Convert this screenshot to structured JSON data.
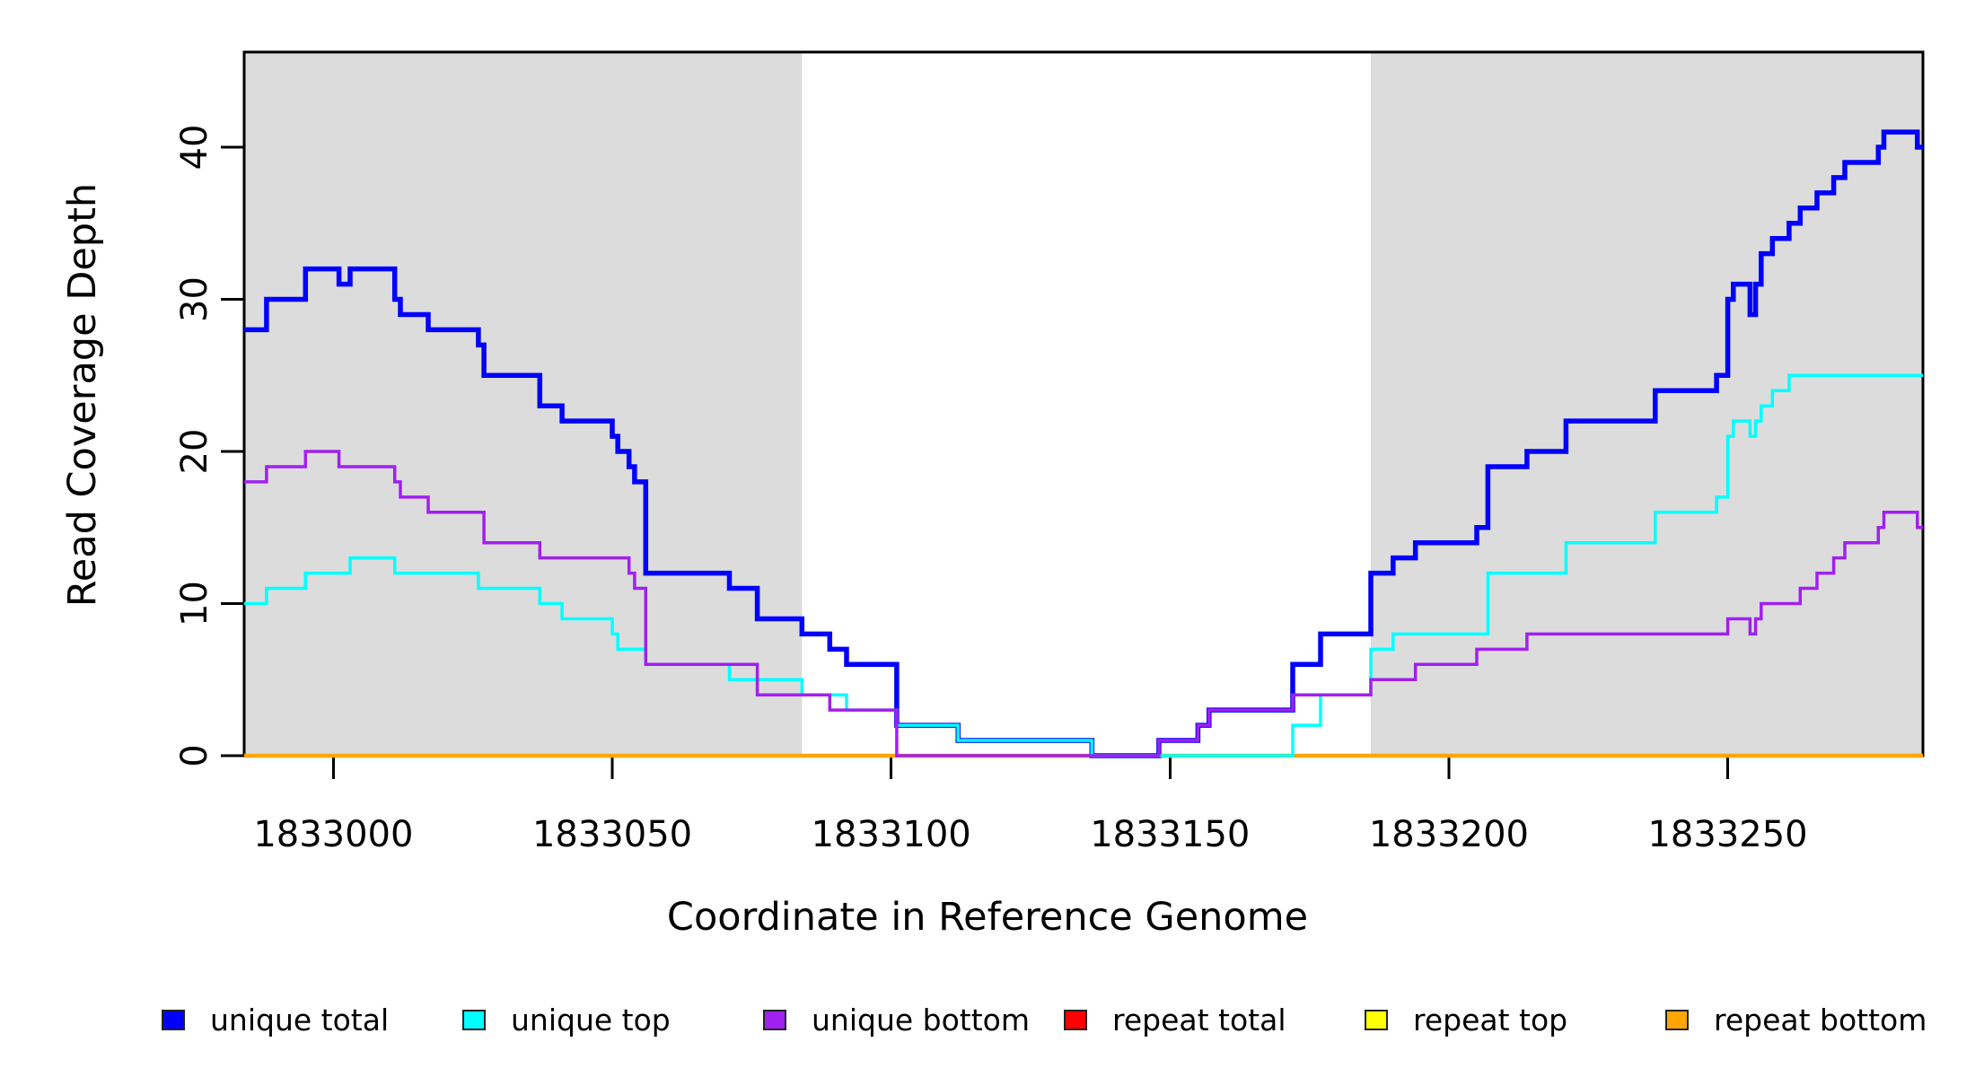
{
  "chart_data": {
    "type": "line",
    "step": true,
    "title": "",
    "xlabel": "Coordinate in Reference Genome",
    "ylabel": "Read Coverage Depth",
    "xlim": [
      1832984,
      1833285
    ],
    "ylim": [
      0,
      46
    ],
    "grid": false,
    "legend_position": "bottom",
    "x_ticks": [
      1833000,
      1833050,
      1833100,
      1833150,
      1833200,
      1833250
    ],
    "y_ticks": [
      0,
      10,
      20,
      30,
      40
    ],
    "shade_color": "#DCDCDC",
    "box_color": "#000000",
    "shaded_regions": [
      {
        "name": "left-flank-band",
        "from": 1832984,
        "to": 1833084
      },
      {
        "name": "right-flank-band",
        "from": 1833186,
        "to": 1833285
      }
    ],
    "series": [
      {
        "name": "repeat total",
        "color": "#FF0000",
        "width": 3,
        "points": [
          [
            1832984,
            0
          ],
          [
            1833285,
            0
          ]
        ]
      },
      {
        "name": "repeat top",
        "color": "#FFFF00",
        "width": 3,
        "points": [
          [
            1832984,
            0
          ],
          [
            1833285,
            0
          ]
        ]
      },
      {
        "name": "repeat bottom",
        "color": "#FFA500",
        "width": 4.5,
        "points": [
          [
            1832984,
            0
          ],
          [
            1833285,
            0
          ]
        ]
      },
      {
        "name": "unique total",
        "color": "#0000FF",
        "width": 5.5,
        "points": [
          [
            1832984,
            28
          ],
          [
            1832988,
            30
          ],
          [
            1832995,
            32
          ],
          [
            1833001,
            31
          ],
          [
            1833003,
            32
          ],
          [
            1833011,
            30
          ],
          [
            1833012,
            29
          ],
          [
            1833017,
            28
          ],
          [
            1833026,
            27
          ],
          [
            1833027,
            25
          ],
          [
            1833037,
            23
          ],
          [
            1833041,
            22
          ],
          [
            1833050,
            21
          ],
          [
            1833051,
            20
          ],
          [
            1833053,
            19
          ],
          [
            1833054,
            18
          ],
          [
            1833056,
            12
          ],
          [
            1833071,
            11
          ],
          [
            1833076,
            9
          ],
          [
            1833084,
            8
          ],
          [
            1833089,
            7
          ],
          [
            1833092,
            6
          ],
          [
            1833101,
            2
          ],
          [
            1833112,
            1
          ],
          [
            1833136,
            0
          ],
          [
            1833148,
            1
          ],
          [
            1833155,
            2
          ],
          [
            1833157,
            3
          ],
          [
            1833172,
            6
          ],
          [
            1833177,
            8
          ],
          [
            1833186,
            12
          ],
          [
            1833190,
            13
          ],
          [
            1833194,
            14
          ],
          [
            1833205,
            15
          ],
          [
            1833207,
            19
          ],
          [
            1833214,
            20
          ],
          [
            1833221,
            22
          ],
          [
            1833237,
            24
          ],
          [
            1833248,
            25
          ],
          [
            1833250,
            30
          ],
          [
            1833251,
            31
          ],
          [
            1833254,
            29
          ],
          [
            1833255,
            31
          ],
          [
            1833256,
            33
          ],
          [
            1833258,
            34
          ],
          [
            1833261,
            35
          ],
          [
            1833263,
            36
          ],
          [
            1833266,
            37
          ],
          [
            1833269,
            38
          ],
          [
            1833271,
            39
          ],
          [
            1833277,
            40
          ],
          [
            1833278,
            41
          ],
          [
            1833284,
            40
          ],
          [
            1833285,
            40
          ]
        ]
      },
      {
        "name": "unique top",
        "color": "#00FFFF",
        "width": 3.5,
        "points": [
          [
            1832984,
            10
          ],
          [
            1832988,
            11
          ],
          [
            1832995,
            12
          ],
          [
            1833003,
            13
          ],
          [
            1833011,
            12
          ],
          [
            1833026,
            11
          ],
          [
            1833037,
            10
          ],
          [
            1833041,
            9
          ],
          [
            1833050,
            8
          ],
          [
            1833051,
            7
          ],
          [
            1833056,
            6
          ],
          [
            1833071,
            5
          ],
          [
            1833084,
            4
          ],
          [
            1833092,
            3
          ],
          [
            1833101,
            2
          ],
          [
            1833112,
            1
          ],
          [
            1833136,
            0
          ],
          [
            1833172,
            2
          ],
          [
            1833177,
            4
          ],
          [
            1833186,
            7
          ],
          [
            1833190,
            8
          ],
          [
            1833207,
            12
          ],
          [
            1833221,
            14
          ],
          [
            1833237,
            16
          ],
          [
            1833248,
            17
          ],
          [
            1833250,
            21
          ],
          [
            1833251,
            22
          ],
          [
            1833254,
            21
          ],
          [
            1833255,
            22
          ],
          [
            1833256,
            23
          ],
          [
            1833258,
            24
          ],
          [
            1833261,
            25
          ],
          [
            1833285,
            25
          ]
        ]
      },
      {
        "name": "unique bottom",
        "color": "#A020F0",
        "width": 3.5,
        "points": [
          [
            1832984,
            18
          ],
          [
            1832988,
            19
          ],
          [
            1832995,
            20
          ],
          [
            1833001,
            19
          ],
          [
            1833011,
            18
          ],
          [
            1833012,
            17
          ],
          [
            1833017,
            16
          ],
          [
            1833027,
            14
          ],
          [
            1833037,
            13
          ],
          [
            1833053,
            12
          ],
          [
            1833054,
            11
          ],
          [
            1833056,
            6
          ],
          [
            1833076,
            4
          ],
          [
            1833089,
            3
          ],
          [
            1833101,
            0
          ],
          [
            1833148,
            1
          ],
          [
            1833155,
            2
          ],
          [
            1833157,
            3
          ],
          [
            1833172,
            4
          ],
          [
            1833186,
            5
          ],
          [
            1833194,
            6
          ],
          [
            1833205,
            7
          ],
          [
            1833214,
            8
          ],
          [
            1833250,
            9
          ],
          [
            1833254,
            8
          ],
          [
            1833255,
            9
          ],
          [
            1833256,
            10
          ],
          [
            1833263,
            11
          ],
          [
            1833266,
            12
          ],
          [
            1833269,
            13
          ],
          [
            1833271,
            14
          ],
          [
            1833277,
            15
          ],
          [
            1833278,
            16
          ],
          [
            1833284,
            15
          ],
          [
            1833285,
            15
          ]
        ]
      }
    ],
    "legend": [
      {
        "label": "unique total",
        "color": "#0000FF"
      },
      {
        "label": "unique top",
        "color": "#00FFFF"
      },
      {
        "label": "unique bottom",
        "color": "#A020F0"
      },
      {
        "label": "repeat total",
        "color": "#FF0000"
      },
      {
        "label": "repeat top",
        "color": "#FFFF00"
      },
      {
        "label": "repeat bottom",
        "color": "#FFA500"
      }
    ]
  }
}
